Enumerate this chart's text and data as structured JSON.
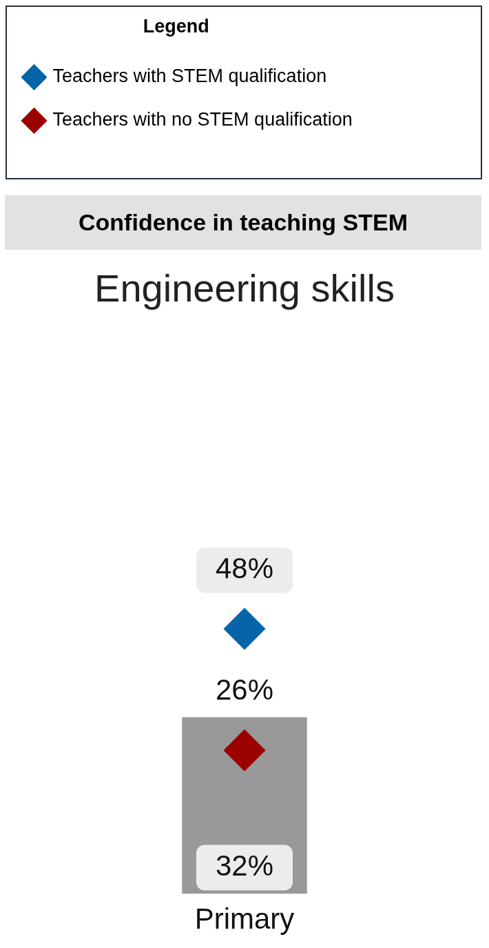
{
  "chart_data": {
    "type": "bar",
    "title": "Confidence in teaching STEM",
    "subtitle": "Engineering skills",
    "legend_title": "Legend",
    "legend": "top",
    "categories": [
      "Primary"
    ],
    "series": [
      {
        "color": "#999999",
        "values": [
          32
        ],
        "value_labels": [
          "32%"
        ]
      },
      {
        "type": "scatter",
        "name": "Teachers with STEM qualification",
        "color": "#0563a8",
        "values": [
          48
        ],
        "value_labels": [
          "48%"
        ]
      },
      {
        "type": "scatter",
        "name": "Teachers with no STEM qualification",
        "color": "#9b0000",
        "values": [
          26
        ],
        "value_labels": [
          "26%"
        ]
      }
    ],
    "marker": "diamond",
    "tick_labels": "x",
    "grid": false
  }
}
